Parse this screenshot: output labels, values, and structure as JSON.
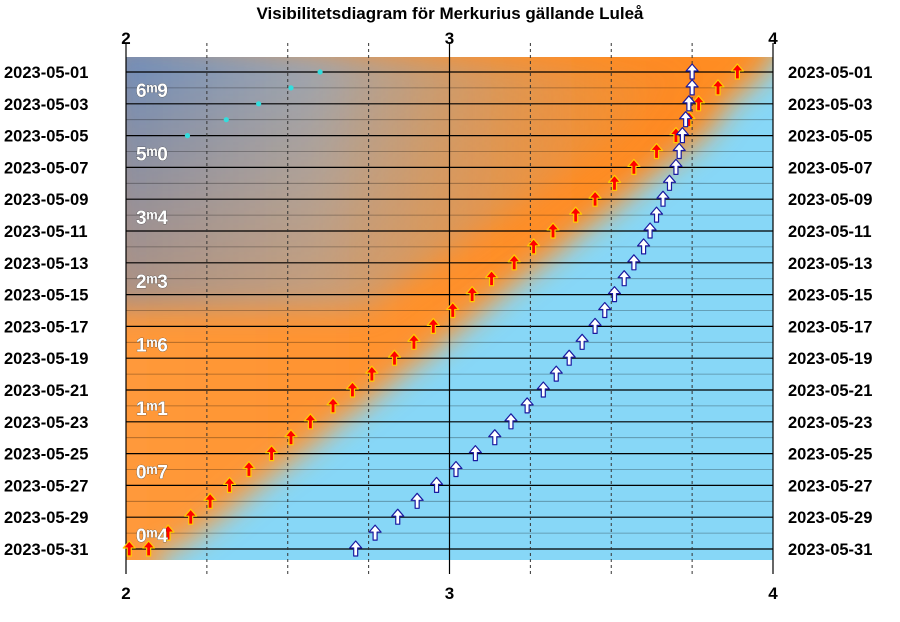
{
  "chart_data": {
    "type": "scatter",
    "title": "Visibilitetsdiagram för Merkurius gällande Luleå",
    "xlim": [
      2,
      4
    ],
    "x_ticks": [
      "2",
      "3",
      "4"
    ],
    "dates": [
      "2023-05-01",
      "2023-05-03",
      "2023-05-05",
      "2023-05-07",
      "2023-05-09",
      "2023-05-11",
      "2023-05-13",
      "2023-05-15",
      "2023-05-17",
      "2023-05-19",
      "2023-05-21",
      "2023-05-23",
      "2023-05-25",
      "2023-05-27",
      "2023-05-29",
      "2023-05-31"
    ],
    "magnitudes": [
      {
        "date": "2023-05-01",
        "label": "6ᵐ9"
      },
      {
        "date": "2023-05-05",
        "label": "5ᵐ0"
      },
      {
        "date": "2023-05-09",
        "label": "3ᵐ4"
      },
      {
        "date": "2023-05-13",
        "label": "2ᵐ3"
      },
      {
        "date": "2023-05-17",
        "label": "1ᵐ6"
      },
      {
        "date": "2023-05-21",
        "label": "1ᵐ1"
      },
      {
        "date": "2023-05-25",
        "label": "0ᵐ7"
      },
      {
        "date": "2023-05-29",
        "label": "0ᵐ4"
      }
    ],
    "series": [
      {
        "marker": "red-up-arrow",
        "color": "#ff0000",
        "x": [
          3.89,
          3.83,
          3.77,
          3.74,
          3.7,
          3.64,
          3.57,
          3.51,
          3.45,
          3.39,
          3.32,
          3.26,
          3.2,
          3.13,
          3.07,
          3.01,
          2.95,
          2.89,
          2.83,
          2.76,
          2.7,
          2.64,
          2.57,
          2.51,
          2.45,
          2.38,
          2.32,
          2.26,
          2.2,
          2.13,
          2.07,
          2.01
        ],
        "dates": [
          "2023-05-01",
          "2023-05-02",
          "2023-05-03",
          "2023-05-04",
          "2023-05-05",
          "2023-05-06",
          "2023-05-07",
          "2023-05-08",
          "2023-05-09",
          "2023-05-10",
          "2023-05-11",
          "2023-05-12",
          "2023-05-13",
          "2023-05-14",
          "2023-05-15",
          "2023-05-16",
          "2023-05-17",
          "2023-05-18",
          "2023-05-19",
          "2023-05-20",
          "2023-05-21",
          "2023-05-22",
          "2023-05-23",
          "2023-05-24",
          "2023-05-25",
          "2023-05-26",
          "2023-05-27",
          "2023-05-28",
          "2023-05-29",
          "2023-05-30",
          "2023-05-31",
          "2023-05-31"
        ]
      },
      {
        "marker": "white-up-arrow",
        "color": "#ffffff",
        "x": [
          3.75,
          3.75,
          3.74,
          3.73,
          3.72,
          3.71,
          3.7,
          3.68,
          3.66,
          3.64,
          3.62,
          3.6,
          3.57,
          3.54,
          3.51,
          3.48,
          3.45,
          3.41,
          3.37,
          3.33,
          3.29,
          3.24,
          3.19,
          3.14,
          3.08,
          3.02,
          2.96,
          2.9,
          2.84,
          2.77,
          2.71
        ],
        "dates": [
          "2023-05-01",
          "2023-05-02",
          "2023-05-03",
          "2023-05-04",
          "2023-05-05",
          "2023-05-06",
          "2023-05-07",
          "2023-05-08",
          "2023-05-09",
          "2023-05-10",
          "2023-05-11",
          "2023-05-12",
          "2023-05-13",
          "2023-05-14",
          "2023-05-15",
          "2023-05-16",
          "2023-05-17",
          "2023-05-18",
          "2023-05-19",
          "2023-05-20",
          "2023-05-21",
          "2023-05-22",
          "2023-05-23",
          "2023-05-24",
          "2023-05-25",
          "2023-05-26",
          "2023-05-27",
          "2023-05-28",
          "2023-05-29",
          "2023-05-30",
          "2023-05-31"
        ]
      },
      {
        "marker": "cyan-dot",
        "color": "#33dddd",
        "x": [
          2.6,
          2.51,
          2.41,
          2.31,
          2.19
        ],
        "dates": [
          "2023-05-01",
          "2023-05-02",
          "2023-05-03",
          "2023-05-04",
          "2023-05-05"
        ]
      }
    ],
    "colors": {
      "day_sky": "#87d7f7",
      "twilight_orange": "#ff9933",
      "night_blue": "#5b8fd6",
      "grid": "#000000"
    }
  }
}
